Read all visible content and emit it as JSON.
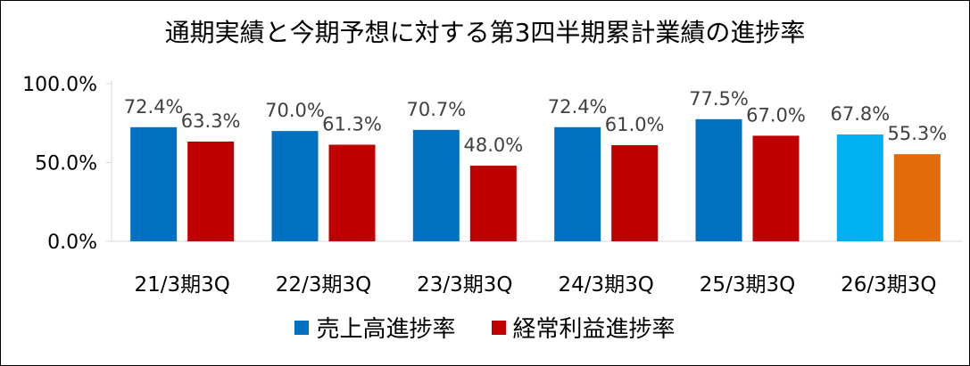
{
  "chart_data": {
    "type": "bar",
    "title": "通期実績と今期予想に対する第3四半期累計業績の進捗率",
    "categories": [
      "21/3期3Q",
      "22/3期3Q",
      "23/3期3Q",
      "24/3期3Q",
      "25/3期3Q",
      "26/3期3Q"
    ],
    "series": [
      {
        "name": "売上高進捗率",
        "values": [
          72.4,
          70.0,
          70.7,
          72.4,
          77.5,
          67.8
        ],
        "labels": [
          "72.4%",
          "70.0%",
          "70.7%",
          "72.4%",
          "77.5%",
          "67.8%"
        ],
        "color": "#0070C0",
        "last_color": "#00B0F0"
      },
      {
        "name": "経常利益進捗率",
        "values": [
          63.3,
          61.3,
          48.0,
          61.0,
          67.0,
          55.3
        ],
        "labels": [
          "63.3%",
          "61.3%",
          "48.0%",
          "61.0%",
          "67.0%",
          "55.3%"
        ],
        "color": "#C00000",
        "last_color": "#E36C0A"
      }
    ],
    "ylim": [
      0,
      100
    ],
    "yticks": [
      0,
      50,
      100
    ],
    "ytick_labels": [
      "0.0%",
      "50.0%",
      "100.0%"
    ],
    "grid": false,
    "legend_position": "bottom"
  }
}
